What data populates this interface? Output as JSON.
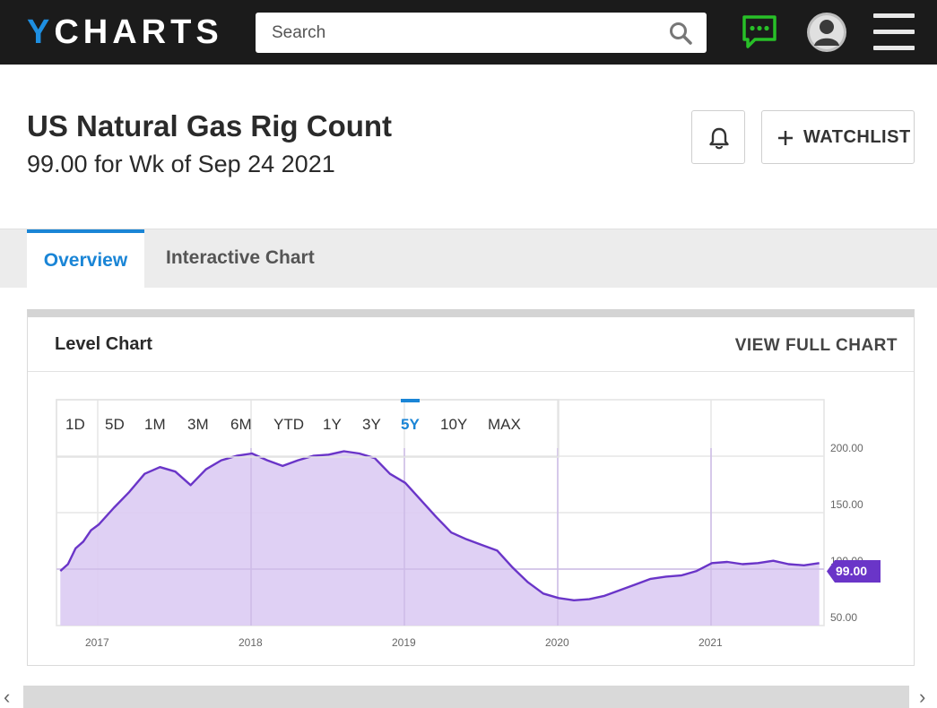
{
  "header": {
    "logo_y": "Y",
    "logo_rest": "CHARTS",
    "search_placeholder": "Search"
  },
  "page": {
    "title": "US Natural Gas Rig Count",
    "subtitle": "99.00 for Wk of Sep 24 2021",
    "watchlist_label": "WATCHLIST"
  },
  "tabs": [
    {
      "label": "Overview",
      "active": true
    },
    {
      "label": "Interactive Chart",
      "active": false
    }
  ],
  "card": {
    "title": "Level Chart",
    "full_chart_label": "VIEW FULL CHART"
  },
  "ranges": [
    "1D",
    "5D",
    "1M",
    "3M",
    "6M",
    "YTD",
    "1Y",
    "3Y",
    "5Y",
    "10Y",
    "MAX"
  ],
  "active_range": "5Y",
  "colors": {
    "accent": "#1a85d6",
    "line": "#6a35c8",
    "fill": "#dccbf3",
    "chat_icon": "#28c028"
  },
  "chart_data": {
    "type": "area",
    "series": [
      {
        "x": [
          2016.75,
          2016.8,
          2016.85,
          2016.9,
          2016.95,
          2017.0,
          2017.1,
          2017.2,
          2017.3,
          2017.4,
          2017.5,
          2017.6,
          2017.7,
          2017.8,
          2017.9,
          2018.0,
          2018.1,
          2018.2,
          2018.3,
          2018.4,
          2018.5,
          2018.6,
          2018.7,
          2018.8,
          2018.9,
          2019.0,
          2019.1,
          2019.2,
          2019.3,
          2019.4,
          2019.5,
          2019.6,
          2019.7,
          2019.8,
          2019.9,
          2020.0,
          2020.1,
          2020.2,
          2020.3,
          2020.4,
          2020.5,
          2020.6,
          2020.7,
          2020.8,
          2020.9,
          2021.0,
          2021.1,
          2021.2,
          2021.3,
          2021.4,
          2021.5,
          2021.6,
          2021.7
        ],
        "y": [
          92,
          98,
          112,
          118,
          128,
          133,
          148,
          162,
          178,
          184,
          180,
          168,
          182,
          190,
          194,
          196,
          190,
          185,
          190,
          194,
          195,
          198,
          196,
          192,
          178,
          170,
          155,
          140,
          126,
          120,
          115,
          110,
          95,
          82,
          72,
          68,
          66,
          67,
          70,
          75,
          80,
          85,
          87,
          88,
          92,
          99,
          100,
          98,
          99,
          101,
          98,
          97,
          99
        ]
      }
    ],
    "ylim": [
      50,
      210
    ],
    "yticks": [
      "200.00",
      "150.00",
      "100.00",
      "50.00"
    ],
    "xticks": [
      "2017",
      "2018",
      "2019",
      "2020",
      "2021"
    ],
    "last_value": "99.00"
  }
}
